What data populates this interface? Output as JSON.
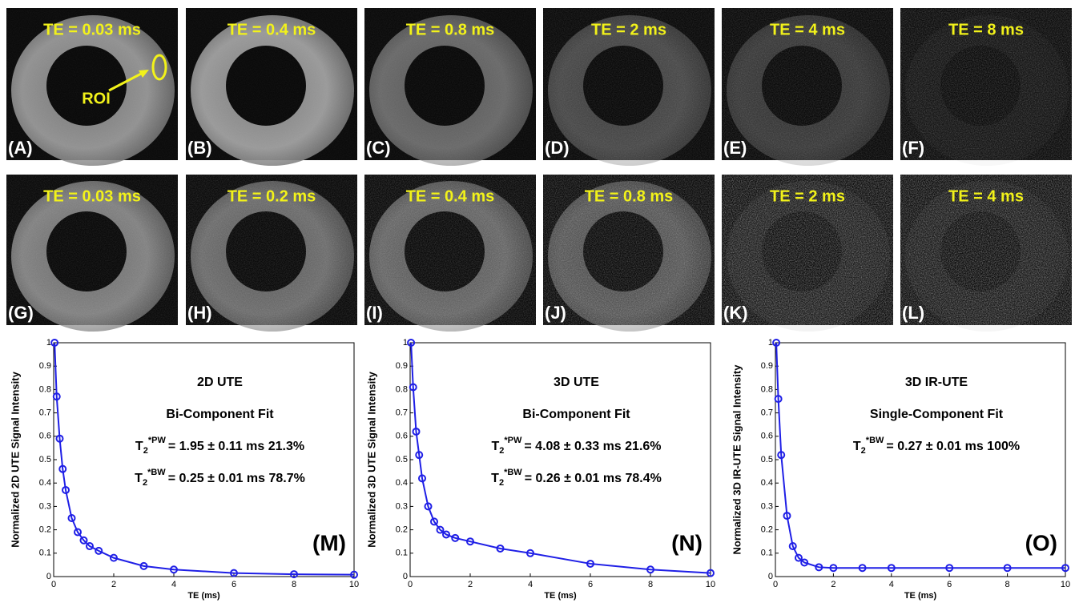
{
  "image_panels": [
    {
      "te": "TE = 0.03 ms",
      "label": "(A)",
      "roi": "ROI"
    },
    {
      "te": "TE = 0.4 ms",
      "label": "(B)"
    },
    {
      "te": "TE = 0.8 ms",
      "label": "(C)"
    },
    {
      "te": "TE = 2 ms",
      "label": "(D)"
    },
    {
      "te": "TE = 4 ms",
      "label": "(E)"
    },
    {
      "te": "TE = 8 ms",
      "label": "(F)"
    },
    {
      "te": "TE = 0.03 ms",
      "label": "(G)"
    },
    {
      "te": "TE = 0.2 ms",
      "label": "(H)"
    },
    {
      "te": "TE = 0.4 ms",
      "label": "(I)"
    },
    {
      "te": "TE = 0.8 ms",
      "label": "(J)"
    },
    {
      "te": "TE = 2 ms",
      "label": "(K)"
    },
    {
      "te": "TE = 4 ms",
      "label": "(L)"
    }
  ],
  "chart_data": [
    {
      "type": "line",
      "panel_label": "(M)",
      "title": "2D UTE",
      "subtitle": "Bi-Component Fit",
      "fits": [
        {
          "symbol": "T",
          "sub": "2",
          "sup": "*PW",
          "text": "= 1.95 ± 0.11 ms   21.3%"
        },
        {
          "symbol": "T",
          "sub": "2",
          "sup": "*BW",
          "text": "= 0.25 ± 0.01 ms   78.7%"
        }
      ],
      "x_label": "TE (ms)",
      "y_label": "Normalized 2D UTE Signal Intensity",
      "x": [
        0.03,
        0.1,
        0.2,
        0.3,
        0.4,
        0.6,
        0.8,
        1.0,
        1.2,
        1.5,
        2,
        3,
        4,
        6,
        8,
        10
      ],
      "series": [
        {
          "color": "#1f1fe6",
          "values": [
            1.0,
            0.77,
            0.59,
            0.46,
            0.37,
            0.25,
            0.19,
            0.155,
            0.13,
            0.11,
            0.08,
            0.045,
            0.03,
            0.015,
            0.01,
            0.008
          ]
        }
      ],
      "xlim": [
        0,
        10
      ],
      "xticks": [
        0,
        2,
        4,
        6,
        8,
        10
      ],
      "ylim": [
        0,
        1
      ],
      "yticks": [
        0,
        0.1,
        0.2,
        0.3,
        0.4,
        0.5,
        0.6,
        0.7,
        0.8,
        0.9,
        1
      ]
    },
    {
      "type": "line",
      "panel_label": "(N)",
      "title": "3D UTE",
      "subtitle": "Bi-Component  Fit",
      "fits": [
        {
          "symbol": "T",
          "sub": "2",
          "sup": "*PW",
          "text": "= 4.08 ± 0.33 ms   21.6%"
        },
        {
          "symbol": "T",
          "sub": "2",
          "sup": "*BW",
          "text": "= 0.26 ± 0.01 ms   78.4%"
        }
      ],
      "x_label": "TE (ms)",
      "y_label": "Normalized 3D UTE  Signal Intensity",
      "x": [
        0.03,
        0.1,
        0.2,
        0.3,
        0.4,
        0.6,
        0.8,
        1.0,
        1.2,
        1.5,
        2,
        3,
        4,
        6,
        8,
        10
      ],
      "series": [
        {
          "color": "#1f1fe6",
          "values": [
            1.0,
            0.81,
            0.62,
            0.52,
            0.42,
            0.3,
            0.235,
            0.2,
            0.18,
            0.165,
            0.15,
            0.12,
            0.1,
            0.055,
            0.03,
            0.015
          ]
        }
      ],
      "xlim": [
        0,
        10
      ],
      "xticks": [
        0,
        2,
        4,
        6,
        8,
        10
      ],
      "ylim": [
        0,
        1
      ],
      "yticks": [
        0,
        0.1,
        0.2,
        0.3,
        0.4,
        0.5,
        0.6,
        0.7,
        0.8,
        0.9,
        1
      ]
    },
    {
      "type": "line",
      "panel_label": "(O)",
      "title": "3D IR-UTE",
      "subtitle": "Single-Component  Fit",
      "fits": [
        {
          "symbol": "T",
          "sub": "2",
          "sup": "*BW",
          "text": "= 0.27 ± 0.01 ms  100%"
        }
      ],
      "x_label": "TE (ms)",
      "y_label": "Normalized 3D IR-UTE Signal Intensity",
      "x": [
        0.03,
        0.1,
        0.2,
        0.4,
        0.6,
        0.8,
        1.0,
        1.5,
        2,
        3,
        4,
        6,
        8,
        10
      ],
      "series": [
        {
          "color": "#1f1fe6",
          "values": [
            1.0,
            0.76,
            0.52,
            0.26,
            0.13,
            0.08,
            0.06,
            0.04,
            0.037,
            0.037,
            0.037,
            0.037,
            0.037,
            0.037
          ]
        }
      ],
      "xlim": [
        0,
        10
      ],
      "xticks": [
        0,
        2,
        4,
        6,
        8,
        10
      ],
      "ylim": [
        0,
        1
      ],
      "yticks": [
        0,
        0.1,
        0.2,
        0.3,
        0.4,
        0.5,
        0.6,
        0.7,
        0.8,
        0.9,
        1
      ]
    }
  ]
}
